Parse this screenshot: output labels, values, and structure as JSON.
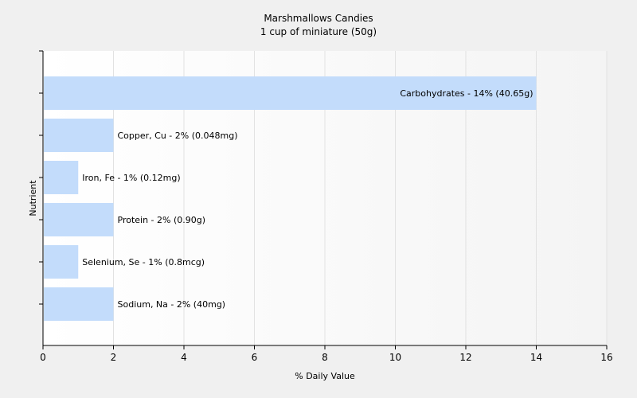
{
  "chart_data": {
    "type": "bar",
    "orientation": "horizontal",
    "title": "Marshmallows Candies",
    "subtitle": "1 cup of miniature (50g)",
    "xlabel": "% Daily Value",
    "ylabel": "Nutrient",
    "xlim": [
      0,
      16
    ],
    "xticks": [
      0,
      2,
      4,
      6,
      8,
      10,
      12,
      14,
      16
    ],
    "grid": "vertical",
    "bar_color": "#c3dcfb",
    "categories": [
      "Carbohydrates",
      "Copper, Cu",
      "Iron, Fe",
      "Protein",
      "Selenium, Se",
      "Sodium, Na"
    ],
    "values": [
      14,
      2,
      1,
      2,
      1,
      2
    ],
    "data_labels": [
      "Carbohydrates - 14% (40.65g)",
      "Copper, Cu - 2% (0.048mg)",
      "Iron, Fe - 1% (0.12mg)",
      "Protein - 2% (0.90g)",
      "Selenium, Se - 1% (0.8mcg)",
      "Sodium, Na - 2% (40mg)"
    ]
  }
}
